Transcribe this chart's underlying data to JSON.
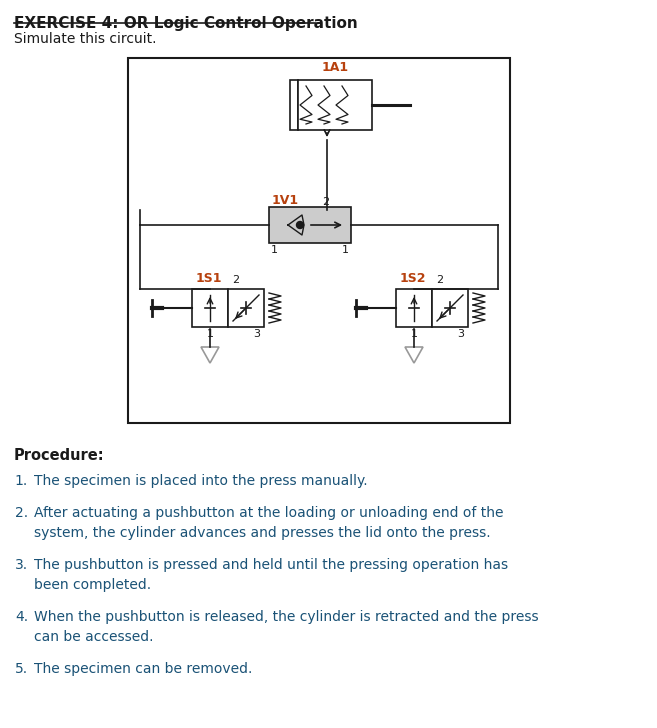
{
  "title": "EXERCISE 4: OR Logic Control Operation",
  "subtitle": "Simulate this circuit.",
  "procedure_title": "Procedure:",
  "procedure_items": [
    [
      "The specimen is placed into the press manually."
    ],
    [
      "After actuating a pushbutton at the loading or unloading end of the",
      "system, the cylinder advances and presses the lid onto the press."
    ],
    [
      "The pushbutton is pressed and held until the pressing operation has",
      "been completed."
    ],
    [
      "When the pushbutton is released, the cylinder is retracted and the press",
      "can be accessed."
    ],
    [
      "The specimen can be removed."
    ]
  ],
  "orange_color": "#b7410e",
  "dark_color": "#1a1a1a",
  "blue_color": "#1a5276",
  "bg_color": "#ffffff",
  "fig_width": 6.57,
  "fig_height": 7.28
}
